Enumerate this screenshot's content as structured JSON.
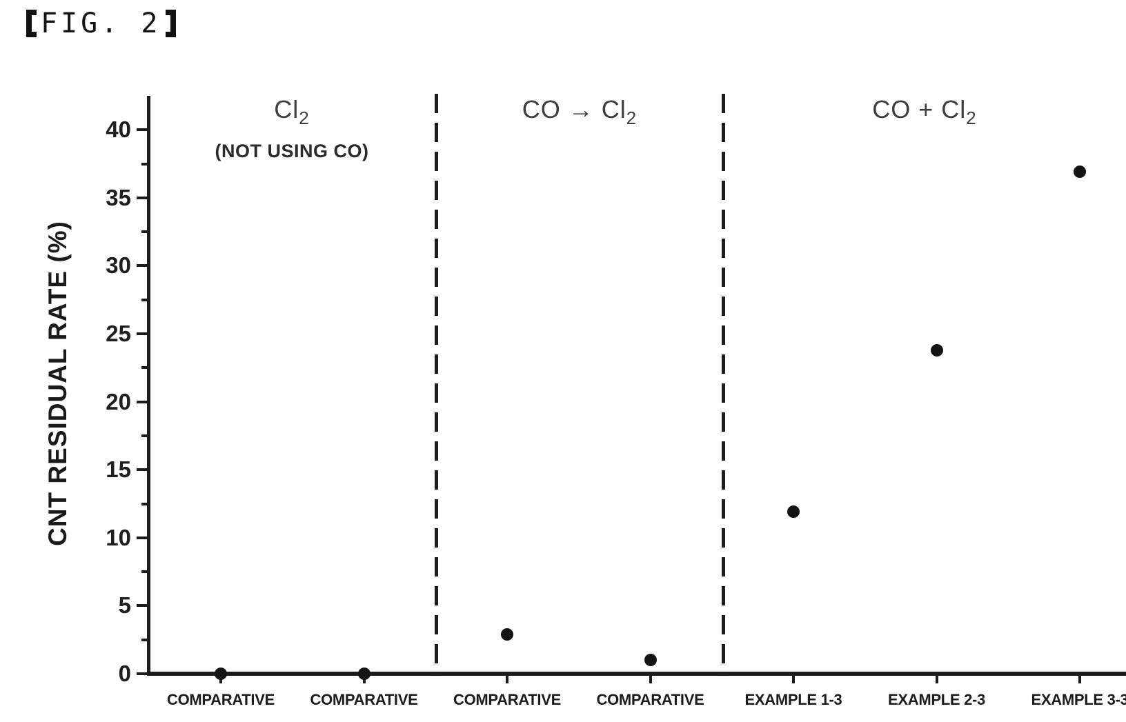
{
  "figure": {
    "title": "【FIG. 2】",
    "title_text": "FIG. 2"
  },
  "chart_data": {
    "type": "scatter",
    "title": "",
    "xlabel": "",
    "ylabel": "CNT RESIDUAL RATE (%)",
    "ylim": [
      0,
      42.5
    ],
    "y_major_ticks": [
      0,
      5,
      10,
      15,
      20,
      25,
      30,
      35,
      40
    ],
    "y_minor_ticks": [
      2.5,
      7.5,
      12.5,
      17.5,
      22.5,
      27.5,
      32.5,
      37.5
    ],
    "grid": false,
    "legend": false,
    "marker_color": "#141414",
    "categories": [
      "COMPARATIVE",
      "COMPARATIVE",
      "COMPARATIVE",
      "COMPARATIVE",
      "EXAMPLE 1-3",
      "EXAMPLE 2-3",
      "EXAMPLE 3-3"
    ],
    "values": [
      0,
      0,
      2.9,
      1.0,
      11.9,
      23.8,
      36.9
    ],
    "sections": [
      {
        "label_prefix": "Cl",
        "label_sub": "2",
        "note": "(NOT USING CO)",
        "category_indexes": [
          0,
          1
        ]
      },
      {
        "label_prefix": "CO → Cl",
        "label_sub": "2",
        "note": "",
        "category_indexes": [
          2,
          3
        ]
      },
      {
        "label_prefix": "CO + Cl",
        "label_sub": "2",
        "note": "",
        "category_indexes": [
          4,
          5,
          6
        ]
      }
    ]
  }
}
